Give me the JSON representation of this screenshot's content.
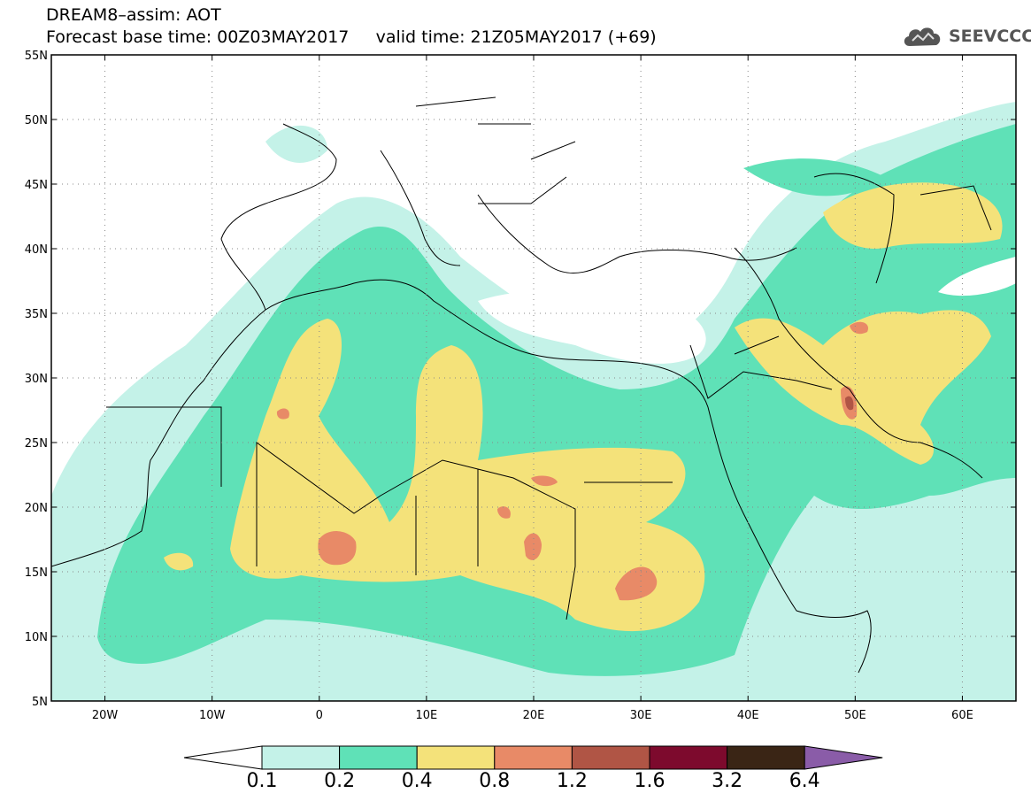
{
  "header": {
    "title_line1": "DREAM8–assim: AOT",
    "base_time_label": "Forecast base time: 00Z03MAY2017",
    "valid_time_label": "valid time: 21Z05MAY2017 (+69)"
  },
  "logo": {
    "text": "SEEVCCC",
    "icon": "cloud-icon"
  },
  "map": {
    "lon_range": [
      -25,
      65
    ],
    "lat_range": [
      5,
      55
    ],
    "lat_labels": [
      "55N",
      "50N",
      "45N",
      "40N",
      "35N",
      "30N",
      "25N",
      "20N",
      "15N",
      "10N",
      "5N"
    ],
    "lat_values": [
      55,
      50,
      45,
      40,
      35,
      30,
      25,
      20,
      15,
      10,
      5
    ],
    "lon_labels": [
      "20W",
      "10W",
      "0",
      "10E",
      "20E",
      "30E",
      "40E",
      "50E",
      "60E"
    ],
    "lon_values": [
      -20,
      -10,
      0,
      10,
      20,
      30,
      40,
      50,
      60
    ],
    "grid": "dotted"
  },
  "colorbar": {
    "levels": [
      "0.1",
      "0.2",
      "0.4",
      "0.8",
      "1.2",
      "1.6",
      "3.2",
      "6.4"
    ],
    "colors": [
      "#c4f2e8",
      "#5fe1b7",
      "#f4e27a",
      "#e88a67",
      "#b05545",
      "#7d0a2d",
      "#3a2515",
      "#8a5ca8"
    ]
  }
}
